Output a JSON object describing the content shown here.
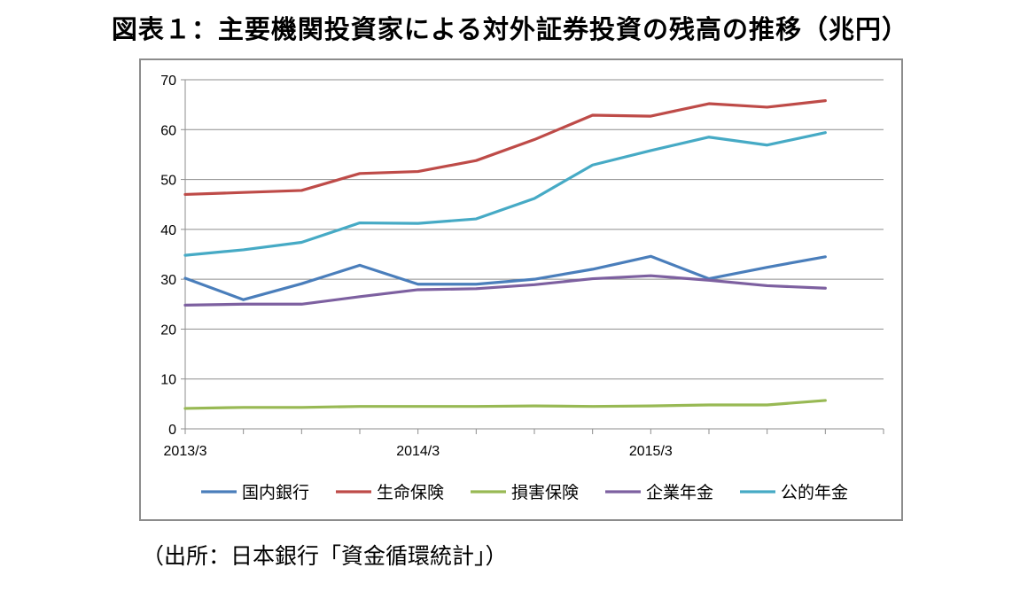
{
  "title": "図表１：主要機関投資家による対外証券投資の残高の推移（兆円）",
  "source": "（出所：日本銀行「資金循環統計」）",
  "chart_data": {
    "type": "line",
    "x": [
      "2013/3",
      "2013/6",
      "2013/9",
      "2013/12",
      "2014/3",
      "2014/6",
      "2014/9",
      "2014/12",
      "2015/3",
      "2015/6",
      "2015/9",
      "2015/12"
    ],
    "x_tick_labels": [
      "2013/3",
      "2014/3",
      "2015/3"
    ],
    "ylim": [
      0,
      70
    ],
    "y_ticks": [
      0,
      10,
      20,
      30,
      40,
      50,
      60,
      70
    ],
    "grid": true,
    "legend_position": "bottom",
    "series": [
      {
        "name": "国内銀行",
        "color": "#4a7ebb",
        "values": [
          30.2,
          25.9,
          29.1,
          32.8,
          29.0,
          29.0,
          30.0,
          32.0,
          34.6,
          30.1,
          32.4,
          34.5
        ]
      },
      {
        "name": "生命保険",
        "color": "#be4b48",
        "values": [
          47.0,
          47.4,
          47.8,
          51.2,
          51.6,
          53.8,
          58.0,
          62.9,
          62.7,
          65.2,
          64.5,
          65.8
        ]
      },
      {
        "name": "損害保険",
        "color": "#98b954",
        "values": [
          4.1,
          4.3,
          4.3,
          4.5,
          4.5,
          4.5,
          4.6,
          4.5,
          4.6,
          4.8,
          4.8,
          5.7
        ]
      },
      {
        "name": "企業年金",
        "color": "#7d60a0",
        "values": [
          24.8,
          25.0,
          25.0,
          26.5,
          27.9,
          28.1,
          28.9,
          30.1,
          30.7,
          29.8,
          28.7,
          28.2
        ]
      },
      {
        "name": "公的年金",
        "color": "#46aac5",
        "values": [
          34.8,
          35.9,
          37.4,
          41.3,
          41.2,
          42.1,
          46.2,
          52.9,
          55.8,
          58.5,
          56.9,
          59.4
        ]
      }
    ]
  }
}
